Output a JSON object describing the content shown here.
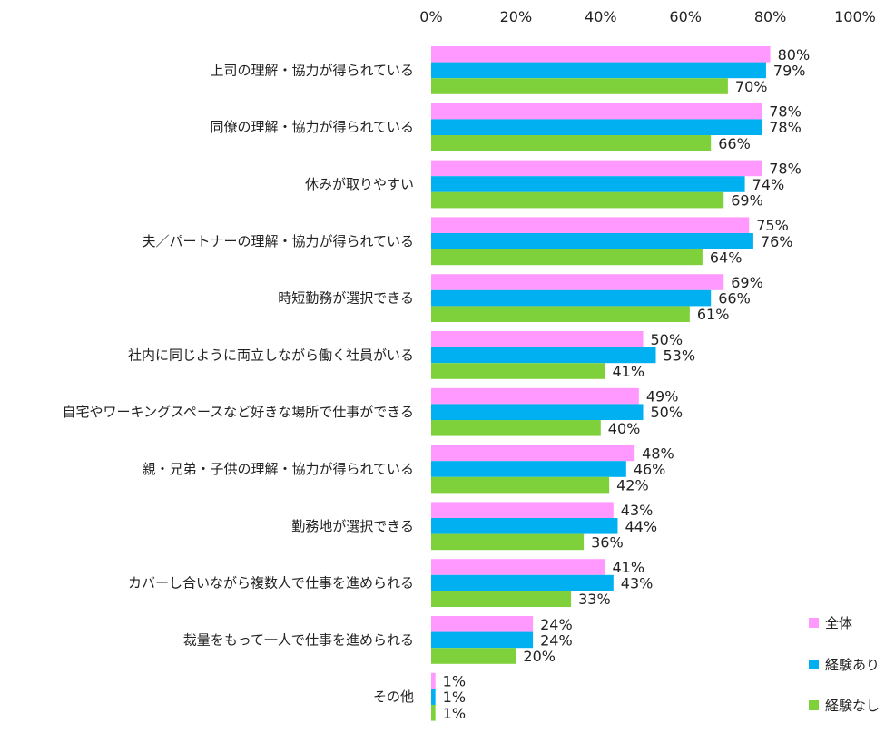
{
  "chart_data": {
    "type": "bar",
    "orientation": "horizontal",
    "title": "",
    "xlabel": "",
    "ylabel": "",
    "xlim": [
      0,
      100
    ],
    "x_ticks": [
      "0%",
      "20%",
      "40%",
      "60%",
      "80%",
      "100%"
    ],
    "categories": [
      "上司の理解・協力が得られている",
      "同僚の理解・協力が得られている",
      "休みが取りやすい",
      "夫／パートナーの理解・協力が得られている",
      "時短勤務が選択できる",
      "社内に同じように両立しながら働く社員がいる",
      "自宅やワーキングスペースなど好きな場所で仕事ができる",
      "親・兄弟・子供の理解・協力が得られている",
      "勤務地が選択できる",
      "カバーし合いながら複数人で仕事を進められる",
      "裁量をもって一人で仕事を進められる",
      "その他"
    ],
    "series": [
      {
        "name": "全体",
        "color": "#FF99FF",
        "values": [
          80,
          78,
          78,
          75,
          69,
          50,
          49,
          48,
          43,
          41,
          24,
          1
        ],
        "labels": [
          "80%",
          "78%",
          "78%",
          "75%",
          "69%",
          "50%",
          "49%",
          "48%",
          "43%",
          "41%",
          "24%",
          "1%"
        ]
      },
      {
        "name": "経験あり",
        "color": "#00B0F0",
        "values": [
          79,
          78,
          74,
          76,
          66,
          53,
          50,
          46,
          44,
          43,
          24,
          1
        ],
        "labels": [
          "79%",
          "78%",
          "74%",
          "76%",
          "66%",
          "53%",
          "50%",
          "46%",
          "44%",
          "43%",
          "24%",
          "1%"
        ]
      },
      {
        "name": "経験なし",
        "color": "#7FD13B",
        "values": [
          70,
          66,
          69,
          64,
          61,
          41,
          40,
          42,
          36,
          33,
          20,
          1
        ],
        "labels": [
          "70%",
          "66%",
          "69%",
          "64%",
          "61%",
          "41%",
          "40%",
          "42%",
          "36%",
          "33%",
          "20%",
          "1%"
        ]
      }
    ],
    "grid": false,
    "legend_position": "bottom-right"
  }
}
